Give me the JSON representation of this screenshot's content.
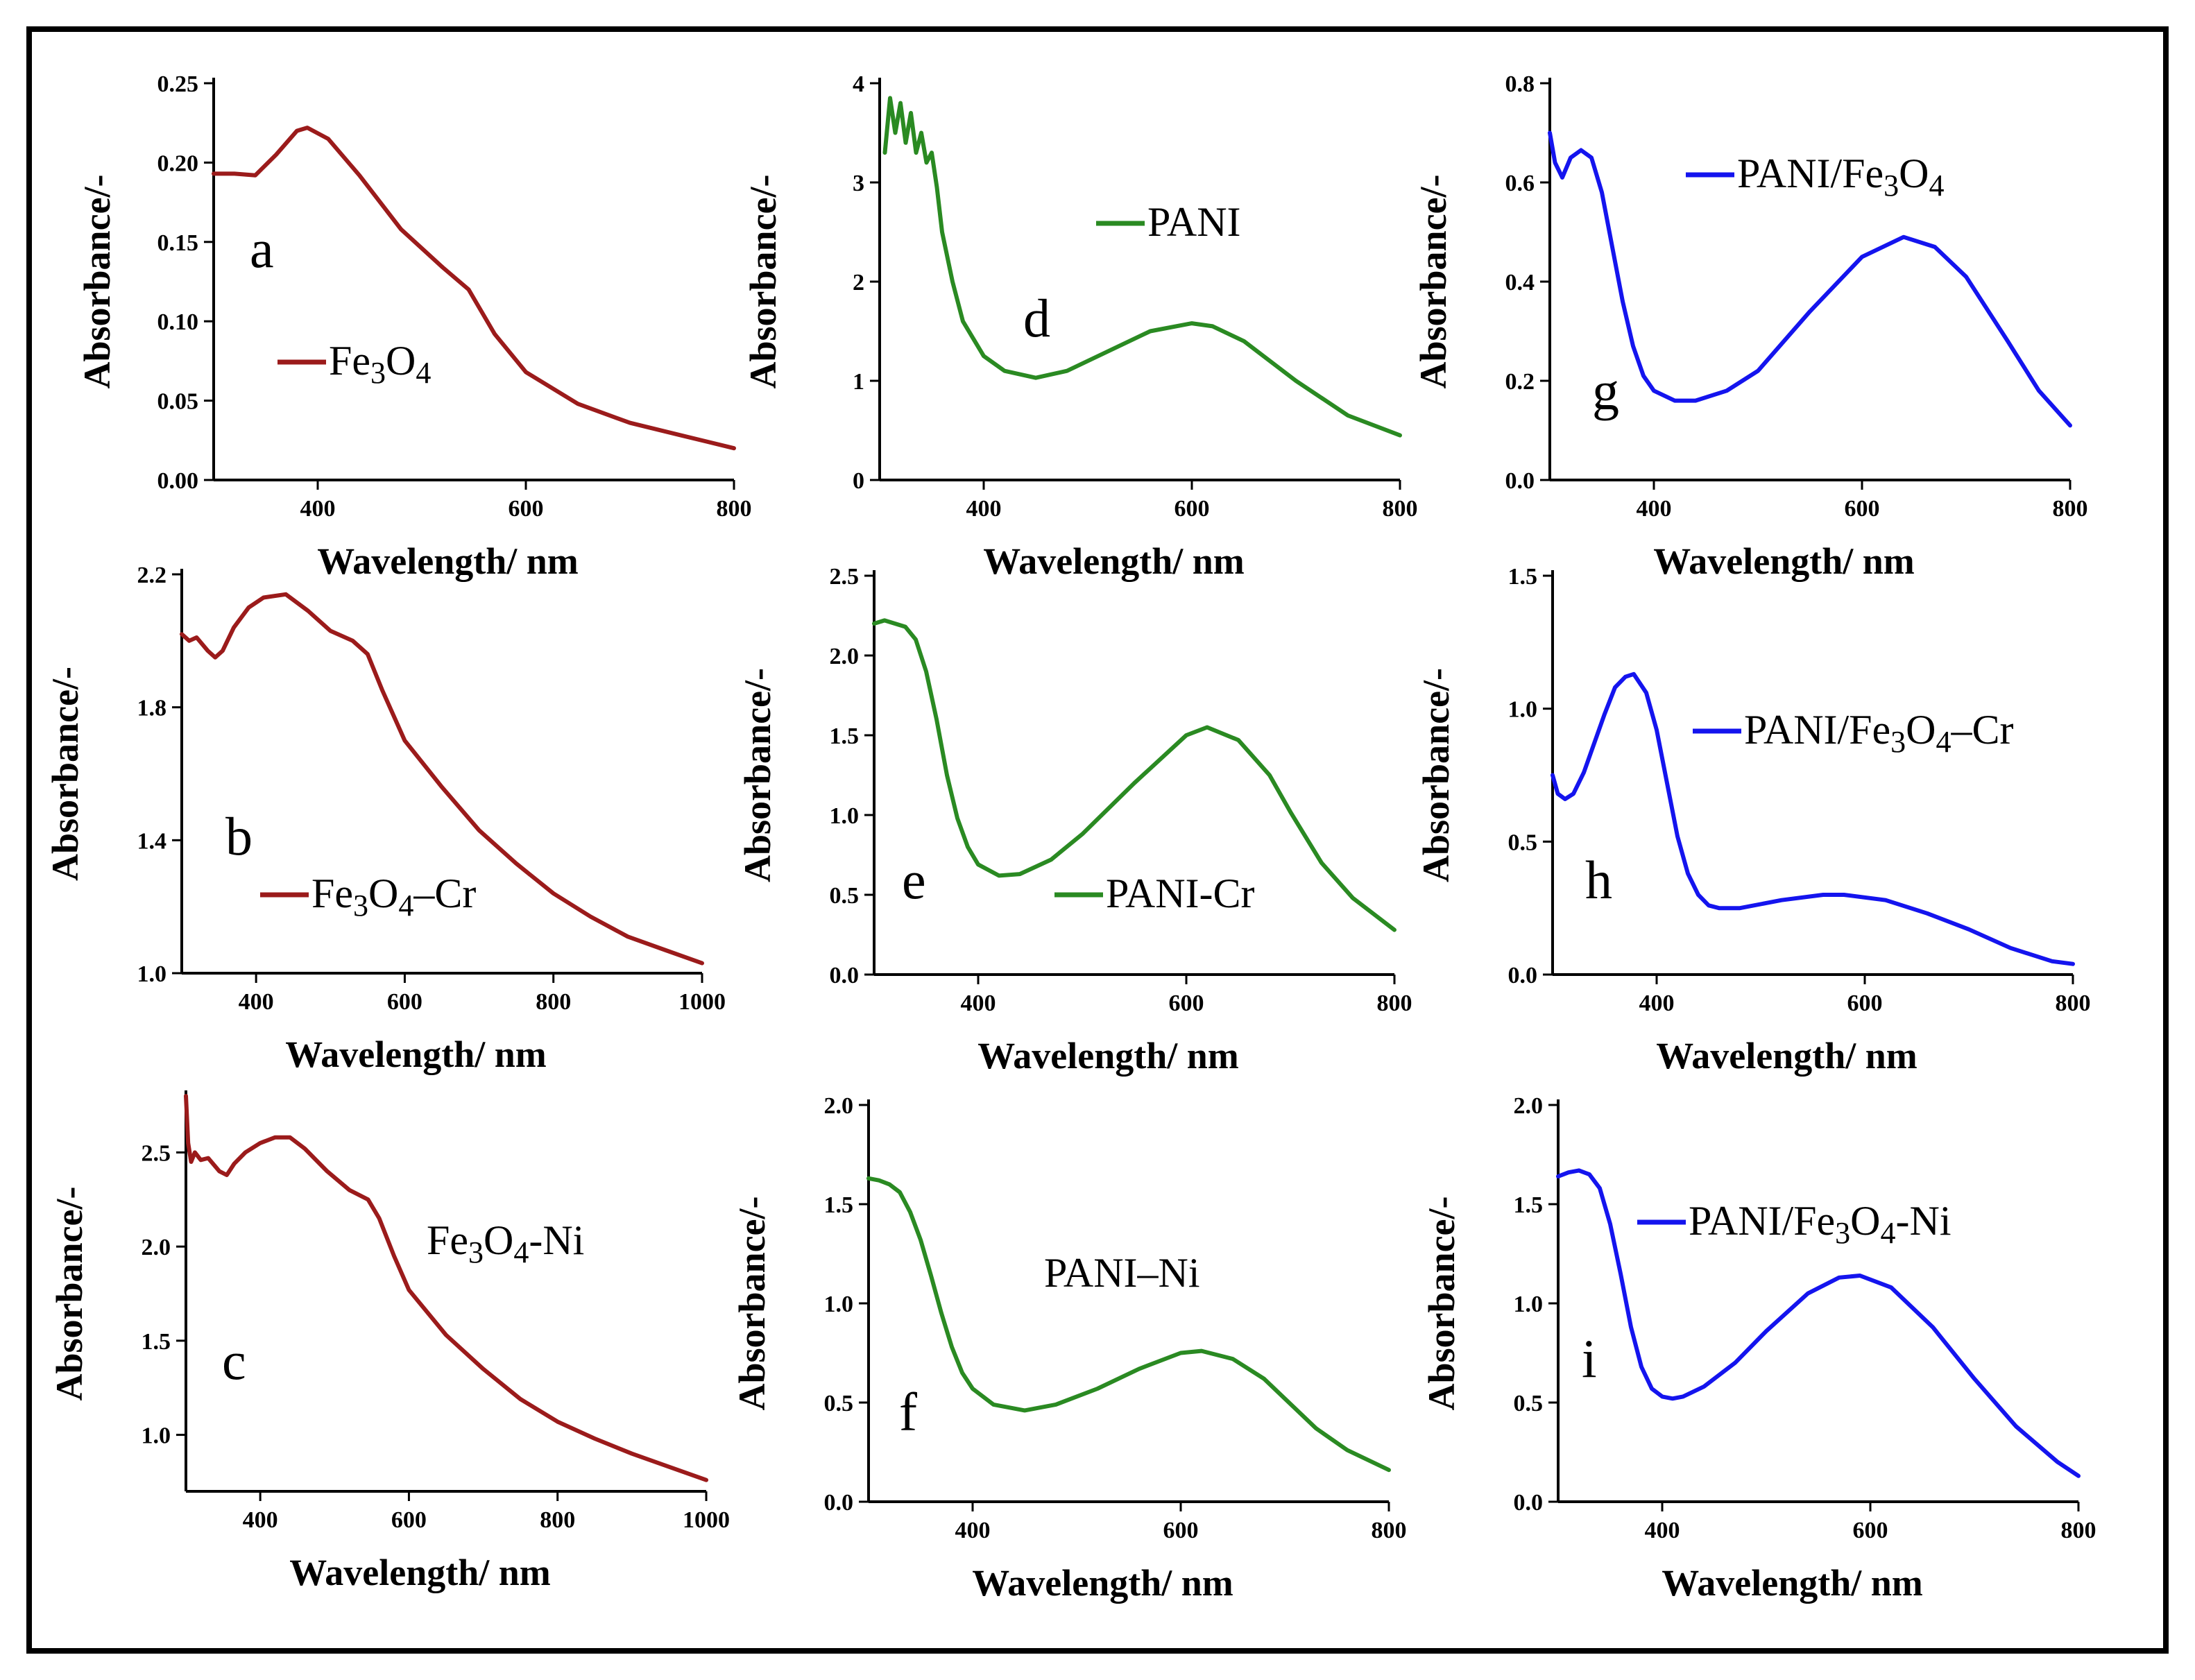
{
  "chart_data": [
    {
      "panel": "a",
      "type": "line",
      "color": "#9b1b1b",
      "xlabel": "Wavelength/ nm",
      "ylabel": "Absorbance/-",
      "xlim": [
        300,
        800
      ],
      "ylim": [
        0.0,
        0.25
      ],
      "xticks": [
        "400",
        "600",
        "800"
      ],
      "xtick_values": [
        400,
        600,
        800
      ],
      "yticks": [
        "0.00",
        "0.05",
        "0.10",
        "0.15",
        "0.20",
        "0.25"
      ],
      "ytick_values": [
        0.0,
        0.05,
        0.1,
        0.15,
        0.2,
        0.25
      ],
      "legend": {
        "parts": [
          [
            "Fe",
            0
          ],
          [
            "3",
            1
          ],
          [
            "O",
            0
          ],
          [
            "4",
            1
          ]
        ],
        "line": true
      },
      "series": [
        {
          "name": "Fe3O4",
          "x": [
            300,
            320,
            340,
            360,
            380,
            390,
            410,
            440,
            480,
            520,
            545,
            570,
            600,
            650,
            700,
            750,
            800
          ],
          "y": [
            0.193,
            0.193,
            0.192,
            0.205,
            0.22,
            0.222,
            0.215,
            0.192,
            0.158,
            0.134,
            0.12,
            0.092,
            0.068,
            0.048,
            0.036,
            0.028,
            0.02
          ]
        }
      ]
    },
    {
      "panel": "d",
      "type": "line",
      "color": "#2a8a22",
      "xlabel": "Wavelength/ nm",
      "ylabel": "Absorbance/-",
      "xlim": [
        300,
        800
      ],
      "ylim": [
        0,
        4
      ],
      "xticks": [
        "400",
        "600",
        "800"
      ],
      "xtick_values": [
        400,
        600,
        800
      ],
      "yticks": [
        "0",
        "1",
        "2",
        "3",
        "4"
      ],
      "ytick_values": [
        0,
        1,
        2,
        3,
        4
      ],
      "legend": {
        "parts": [
          [
            "PANI",
            0
          ]
        ],
        "line": true
      },
      "series": [
        {
          "name": "PANI",
          "x": [
            305,
            310,
            315,
            320,
            325,
            330,
            335,
            340,
            345,
            350,
            355,
            360,
            370,
            380,
            400,
            420,
            450,
            480,
            520,
            560,
            600,
            620,
            650,
            700,
            750,
            800
          ],
          "y": [
            3.3,
            3.85,
            3.5,
            3.8,
            3.4,
            3.7,
            3.3,
            3.5,
            3.2,
            3.3,
            2.95,
            2.5,
            2.0,
            1.6,
            1.25,
            1.1,
            1.03,
            1.1,
            1.3,
            1.5,
            1.58,
            1.55,
            1.4,
            1.0,
            0.65,
            0.45
          ]
        }
      ]
    },
    {
      "panel": "g",
      "type": "line",
      "color": "#1414ee",
      "xlabel": "Wavelength/ nm",
      "ylabel": "Absorbance/-",
      "xlim": [
        300,
        800
      ],
      "ylim": [
        0.0,
        0.8
      ],
      "xticks": [
        "400",
        "600",
        "800"
      ],
      "xtick_values": [
        400,
        600,
        800
      ],
      "yticks": [
        "0.0",
        "0.2",
        "0.4",
        "0.6",
        "0.8"
      ],
      "ytick_values": [
        0.0,
        0.2,
        0.4,
        0.6,
        0.8
      ],
      "legend": {
        "parts": [
          [
            "PANI/Fe",
            0
          ],
          [
            "3",
            1
          ],
          [
            "O",
            0
          ],
          [
            "4",
            1
          ]
        ],
        "line": true
      },
      "series": [
        {
          "name": "PANI/Fe3O4",
          "x": [
            300,
            305,
            312,
            320,
            330,
            340,
            350,
            360,
            370,
            380,
            390,
            400,
            420,
            440,
            470,
            500,
            550,
            600,
            640,
            670,
            700,
            740,
            770,
            800
          ],
          "y": [
            0.7,
            0.64,
            0.61,
            0.65,
            0.665,
            0.65,
            0.58,
            0.47,
            0.36,
            0.27,
            0.21,
            0.18,
            0.16,
            0.16,
            0.18,
            0.22,
            0.34,
            0.45,
            0.49,
            0.47,
            0.41,
            0.28,
            0.18,
            0.11
          ]
        }
      ]
    },
    {
      "panel": "b",
      "type": "line",
      "color": "#9b1b1b",
      "xlabel": "Wavelength/ nm",
      "ylabel": "Absorbance/-",
      "xlim": [
        300,
        1000
      ],
      "ylim": [
        1.0,
        2.2
      ],
      "xticks": [
        "400",
        "600",
        "800",
        "1000"
      ],
      "xtick_values": [
        400,
        600,
        800,
        1000
      ],
      "yticks": [
        "1.0",
        "1.4",
        "1.8",
        "2.2"
      ],
      "ytick_values": [
        1.0,
        1.4,
        1.8,
        2.2
      ],
      "legend": {
        "parts": [
          [
            "Fe",
            0
          ],
          [
            "3",
            1
          ],
          [
            "O",
            0
          ],
          [
            "4",
            1
          ],
          [
            "‒Cr",
            0
          ]
        ],
        "line": true
      },
      "series": [
        {
          "name": "Fe3O4-Cr",
          "x": [
            300,
            310,
            320,
            335,
            345,
            355,
            370,
            390,
            410,
            440,
            470,
            500,
            530,
            550,
            570,
            600,
            650,
            700,
            750,
            800,
            850,
            900,
            950,
            1000
          ],
          "y": [
            2.02,
            2.0,
            2.01,
            1.97,
            1.95,
            1.97,
            2.04,
            2.1,
            2.13,
            2.14,
            2.09,
            2.03,
            2.0,
            1.96,
            1.85,
            1.7,
            1.56,
            1.43,
            1.33,
            1.24,
            1.17,
            1.11,
            1.07,
            1.03
          ]
        }
      ]
    },
    {
      "panel": "e",
      "type": "line",
      "color": "#2a8a22",
      "xlabel": "Wavelength/ nm",
      "ylabel": "Absorbance/-",
      "xlim": [
        300,
        800
      ],
      "ylim": [
        0.0,
        2.5
      ],
      "xticks": [
        "400",
        "600",
        "800"
      ],
      "xtick_values": [
        400,
        600,
        800
      ],
      "yticks": [
        "0.0",
        "0.5",
        "1.0",
        "1.5",
        "2.0",
        "2.5"
      ],
      "ytick_values": [
        0.0,
        0.5,
        1.0,
        1.5,
        2.0,
        2.5
      ],
      "legend": {
        "parts": [
          [
            "PANI-Cr",
            0
          ]
        ],
        "line": true
      },
      "series": [
        {
          "name": "PANI-Cr",
          "x": [
            300,
            310,
            320,
            330,
            340,
            350,
            360,
            370,
            380,
            390,
            400,
            420,
            440,
            470,
            500,
            550,
            600,
            620,
            650,
            680,
            700,
            730,
            760,
            800
          ],
          "y": [
            2.2,
            2.22,
            2.2,
            2.18,
            2.1,
            1.9,
            1.6,
            1.25,
            0.98,
            0.8,
            0.69,
            0.62,
            0.63,
            0.72,
            0.88,
            1.2,
            1.5,
            1.55,
            1.47,
            1.25,
            1.02,
            0.7,
            0.48,
            0.28
          ]
        }
      ]
    },
    {
      "panel": "h",
      "type": "line",
      "color": "#1414ee",
      "xlabel": "Wavelength/ nm",
      "ylabel": "Absorbance/-",
      "xlim": [
        300,
        800
      ],
      "ylim": [
        0.0,
        1.5
      ],
      "xticks": [
        "400",
        "600",
        "800"
      ],
      "xtick_values": [
        400,
        600,
        800
      ],
      "yticks": [
        "0.0",
        "0.5",
        "1.0",
        "1.5"
      ],
      "ytick_values": [
        0.0,
        0.5,
        1.0,
        1.5
      ],
      "legend": {
        "parts": [
          [
            "PANI/Fe",
            0
          ],
          [
            "3",
            1
          ],
          [
            "O",
            0
          ],
          [
            "4",
            1
          ],
          [
            "‒Cr",
            0
          ]
        ],
        "line": true
      },
      "series": [
        {
          "name": "PANI/Fe3O4-Cr",
          "x": [
            300,
            305,
            312,
            320,
            330,
            340,
            350,
            360,
            370,
            378,
            390,
            400,
            410,
            420,
            430,
            440,
            450,
            460,
            480,
            520,
            560,
            580,
            620,
            660,
            700,
            740,
            780,
            800
          ],
          "y": [
            0.75,
            0.68,
            0.66,
            0.68,
            0.76,
            0.87,
            0.98,
            1.08,
            1.12,
            1.13,
            1.06,
            0.92,
            0.72,
            0.52,
            0.38,
            0.3,
            0.26,
            0.25,
            0.25,
            0.28,
            0.3,
            0.3,
            0.28,
            0.23,
            0.17,
            0.1,
            0.05,
            0.04
          ]
        }
      ]
    },
    {
      "panel": "c",
      "type": "line",
      "color": "#9b1b1b",
      "xlabel": "Wavelength/ nm",
      "ylabel": "Absorbance/-",
      "xlim": [
        300,
        1000
      ],
      "ylim": [
        0.7,
        2.8
      ],
      "xticks": [
        "400",
        "600",
        "800",
        "1000"
      ],
      "xtick_values": [
        400,
        600,
        800,
        1000
      ],
      "yticks": [
        "1.0",
        "1.5",
        "2.0",
        "2.5"
      ],
      "ytick_values": [
        1.0,
        1.5,
        2.0,
        2.5
      ],
      "legend": {
        "parts": [
          [
            "Fe",
            0
          ],
          [
            "3",
            1
          ],
          [
            "O",
            0
          ],
          [
            "4",
            1
          ],
          [
            "-Ni",
            0
          ]
        ],
        "line": false
      },
      "series": [
        {
          "name": "Fe3O4-Ni",
          "x": [
            300,
            303,
            307,
            312,
            320,
            330,
            345,
            355,
            365,
            380,
            400,
            420,
            440,
            460,
            490,
            520,
            545,
            560,
            580,
            600,
            650,
            700,
            750,
            800,
            850,
            900,
            950,
            1000
          ],
          "y": [
            2.8,
            2.55,
            2.45,
            2.5,
            2.46,
            2.47,
            2.4,
            2.38,
            2.44,
            2.5,
            2.55,
            2.58,
            2.58,
            2.52,
            2.4,
            2.3,
            2.25,
            2.15,
            1.95,
            1.77,
            1.53,
            1.35,
            1.19,
            1.07,
            0.98,
            0.9,
            0.83,
            0.76
          ]
        }
      ]
    },
    {
      "panel": "f",
      "type": "line",
      "color": "#2a8a22",
      "xlabel": "Wavelength/ nm",
      "ylabel": "Absorbance/-",
      "xlim": [
        300,
        800
      ],
      "ylim": [
        0.0,
        2.0
      ],
      "xticks": [
        "400",
        "600",
        "800"
      ],
      "xtick_values": [
        400,
        600,
        800
      ],
      "yticks": [
        "0.0",
        "0.5",
        "1.0",
        "1.5",
        "2.0"
      ],
      "ytick_values": [
        0.0,
        0.5,
        1.0,
        1.5,
        2.0
      ],
      "legend": {
        "parts": [
          [
            "PANI‒Ni",
            0
          ]
        ],
        "line": false
      },
      "series": [
        {
          "name": "PANI-Ni",
          "x": [
            300,
            310,
            320,
            330,
            340,
            350,
            360,
            370,
            380,
            390,
            400,
            420,
            450,
            480,
            520,
            560,
            600,
            620,
            650,
            680,
            700,
            730,
            760,
            800
          ],
          "y": [
            1.63,
            1.62,
            1.6,
            1.56,
            1.46,
            1.32,
            1.14,
            0.95,
            0.78,
            0.65,
            0.57,
            0.49,
            0.46,
            0.49,
            0.57,
            0.67,
            0.75,
            0.76,
            0.72,
            0.62,
            0.52,
            0.37,
            0.26,
            0.16
          ]
        }
      ]
    },
    {
      "panel": "i",
      "type": "line",
      "color": "#1414ee",
      "xlabel": "Wavelength/ nm",
      "ylabel": "Absorbance/-",
      "xlim": [
        300,
        800
      ],
      "ylim": [
        0.0,
        2.0
      ],
      "xticks": [
        "400",
        "600",
        "800"
      ],
      "xtick_values": [
        400,
        600,
        800
      ],
      "yticks": [
        "0.0",
        "0.5",
        "1.0",
        "1.5",
        "2.0"
      ],
      "ytick_values": [
        0.0,
        0.5,
        1.0,
        1.5,
        2.0
      ],
      "legend": {
        "parts": [
          [
            "PANI/Fe",
            0
          ],
          [
            "3",
            1
          ],
          [
            "O",
            0
          ],
          [
            "4",
            1
          ],
          [
            "-Ni",
            0
          ]
        ],
        "line": true
      },
      "series": [
        {
          "name": "PANI/Fe3O4-Ni",
          "x": [
            300,
            310,
            320,
            330,
            340,
            350,
            360,
            370,
            380,
            390,
            400,
            410,
            420,
            440,
            470,
            500,
            540,
            570,
            590,
            620,
            660,
            700,
            740,
            780,
            800
          ],
          "y": [
            1.64,
            1.66,
            1.67,
            1.65,
            1.58,
            1.4,
            1.15,
            0.88,
            0.68,
            0.57,
            0.53,
            0.52,
            0.53,
            0.58,
            0.7,
            0.86,
            1.05,
            1.13,
            1.14,
            1.08,
            0.88,
            0.62,
            0.38,
            0.2,
            0.13
          ]
        }
      ]
    }
  ]
}
